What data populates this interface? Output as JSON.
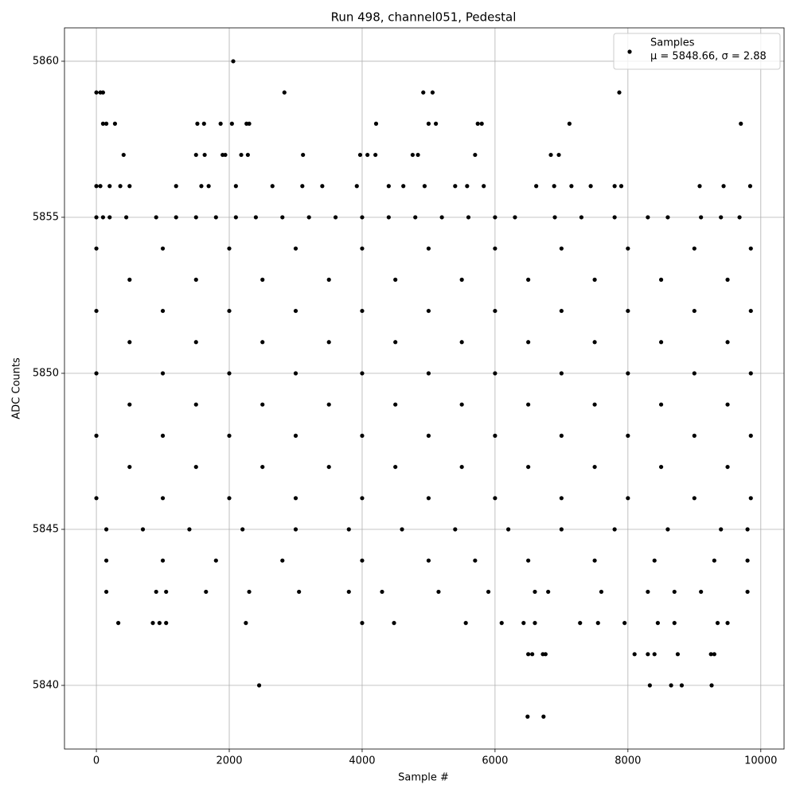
{
  "chart_data": {
    "type": "scatter",
    "title": "Run 498, channel051, Pedestal",
    "x_label": "Sample #",
    "y_label": "ADC Counts",
    "xlim": [
      -480,
      10350
    ],
    "ylim": [
      5837.96,
      5861.07
    ],
    "xticks": [
      0,
      2000,
      4000,
      6000,
      8000,
      10000
    ],
    "yticks": [
      5840,
      5845,
      5850,
      5855,
      5860
    ],
    "grid": true,
    "legend": "upper right",
    "annotation": "μ = 5848.66, σ = 2.88",
    "series": [
      {
        "name": "Samples",
        "color": "#000000",
        "x": [
          2060,
          0,
          60,
          100,
          2830,
          4920,
          5060,
          7870,
          100,
          150,
          280,
          1520,
          1620,
          1870,
          2040,
          2260,
          2300,
          4210,
          5000,
          5110,
          5740,
          5800,
          7120,
          9700,
          410,
          1500,
          1630,
          1900,
          1940,
          2180,
          2280,
          3110,
          3970,
          4080,
          4200,
          4760,
          4840,
          5700,
          6840,
          6960,
          0,
          60,
          200,
          360,
          500,
          1200,
          1580,
          1690,
          2100,
          2650,
          3100,
          3400,
          3920,
          4400,
          4620,
          4940,
          5400,
          5580,
          5830,
          6620,
          6890,
          7150,
          7440,
          7800,
          7900,
          9080,
          9440,
          9840,
          0,
          100,
          200,
          450,
          900,
          1200,
          1500,
          1800,
          2100,
          2400,
          2800,
          3200,
          3600,
          4000,
          4400,
          4800,
          5200,
          5600,
          6000,
          6300,
          6900,
          7300,
          7800,
          8300,
          8600,
          9100,
          9400,
          9680,
          0,
          1000,
          2000,
          3000,
          4000,
          5000,
          6000,
          7000,
          8000,
          9000,
          9850,
          500,
          1500,
          2500,
          3500,
          4500,
          5500,
          6500,
          7500,
          8500,
          9500,
          0,
          1000,
          2000,
          3000,
          4000,
          5000,
          6000,
          7000,
          8000,
          9000,
          9850,
          500,
          1500,
          2500,
          3500,
          4500,
          5500,
          6500,
          7500,
          8500,
          9500,
          0,
          1000,
          2000,
          3000,
          4000,
          5000,
          6000,
          7000,
          8000,
          9000,
          9850,
          500,
          1500,
          2500,
          3500,
          4500,
          5500,
          6500,
          7500,
          8500,
          9500,
          0,
          1000,
          2000,
          3000,
          4000,
          5000,
          6000,
          7000,
          8000,
          9000,
          9850,
          500,
          1500,
          2500,
          3500,
          4500,
          5500,
          6500,
          7500,
          8500,
          9500,
          0,
          1000,
          2000,
          3000,
          4000,
          5000,
          6000,
          7000,
          8000,
          9000,
          9850,
          150,
          700,
          1400,
          2200,
          3000,
          3800,
          4600,
          5400,
          6200,
          7000,
          7800,
          8600,
          9400,
          9800,
          150,
          1000,
          1800,
          2800,
          4000,
          5000,
          5700,
          6500,
          7500,
          8400,
          9300,
          9800,
          150,
          900,
          1050,
          1650,
          2300,
          3050,
          3800,
          4300,
          5150,
          5900,
          6600,
          6800,
          7600,
          8300,
          8700,
          9100,
          9800,
          330,
          850,
          950,
          1050,
          2250,
          4000,
          4480,
          5560,
          6100,
          6430,
          6600,
          7280,
          7550,
          7950,
          8450,
          8700,
          9350,
          9500,
          6500,
          6560,
          6720,
          6760,
          8100,
          8300,
          8400,
          8750,
          9250,
          9300,
          2450,
          8330,
          8650,
          8810,
          9260,
          6490,
          6730
        ],
        "values": [
          5860,
          5859,
          5859,
          5859,
          5859,
          5859,
          5859,
          5859,
          5858,
          5858,
          5858,
          5858,
          5858,
          5858,
          5858,
          5858,
          5858,
          5858,
          5858,
          5858,
          5858,
          5858,
          5858,
          5858,
          5857,
          5857,
          5857,
          5857,
          5857,
          5857,
          5857,
          5857,
          5857,
          5857,
          5857,
          5857,
          5857,
          5857,
          5857,
          5857,
          5856,
          5856,
          5856,
          5856,
          5856,
          5856,
          5856,
          5856,
          5856,
          5856,
          5856,
          5856,
          5856,
          5856,
          5856,
          5856,
          5856,
          5856,
          5856,
          5856,
          5856,
          5856,
          5856,
          5856,
          5856,
          5856,
          5856,
          5856,
          5855,
          5855,
          5855,
          5855,
          5855,
          5855,
          5855,
          5855,
          5855,
          5855,
          5855,
          5855,
          5855,
          5855,
          5855,
          5855,
          5855,
          5855,
          5855,
          5855,
          5855,
          5855,
          5855,
          5855,
          5855,
          5855,
          5855,
          5855,
          5854,
          5854,
          5854,
          5854,
          5854,
          5854,
          5854,
          5854,
          5854,
          5854,
          5854,
          5853,
          5853,
          5853,
          5853,
          5853,
          5853,
          5853,
          5853,
          5853,
          5853,
          5852,
          5852,
          5852,
          5852,
          5852,
          5852,
          5852,
          5852,
          5852,
          5852,
          5852,
          5851,
          5851,
          5851,
          5851,
          5851,
          5851,
          5851,
          5851,
          5851,
          5851,
          5850,
          5850,
          5850,
          5850,
          5850,
          5850,
          5850,
          5850,
          5850,
          5850,
          5850,
          5849,
          5849,
          5849,
          5849,
          5849,
          5849,
          5849,
          5849,
          5849,
          5849,
          5848,
          5848,
          5848,
          5848,
          5848,
          5848,
          5848,
          5848,
          5848,
          5848,
          5848,
          5847,
          5847,
          5847,
          5847,
          5847,
          5847,
          5847,
          5847,
          5847,
          5847,
          5846,
          5846,
          5846,
          5846,
          5846,
          5846,
          5846,
          5846,
          5846,
          5846,
          5846,
          5845,
          5845,
          5845,
          5845,
          5845,
          5845,
          5845,
          5845,
          5845,
          5845,
          5845,
          5845,
          5845,
          5845,
          5844,
          5844,
          5844,
          5844,
          5844,
          5844,
          5844,
          5844,
          5844,
          5844,
          5844,
          5844,
          5843,
          5843,
          5843,
          5843,
          5843,
          5843,
          5843,
          5843,
          5843,
          5843,
          5843,
          5843,
          5843,
          5843,
          5843,
          5843,
          5843,
          5842,
          5842,
          5842,
          5842,
          5842,
          5842,
          5842,
          5842,
          5842,
          5842,
          5842,
          5842,
          5842,
          5842,
          5842,
          5842,
          5842,
          5842,
          5841,
          5841,
          5841,
          5841,
          5841,
          5841,
          5841,
          5841,
          5841,
          5841,
          5840,
          5840,
          5840,
          5840,
          5840,
          5839,
          5839
        ]
      }
    ]
  }
}
